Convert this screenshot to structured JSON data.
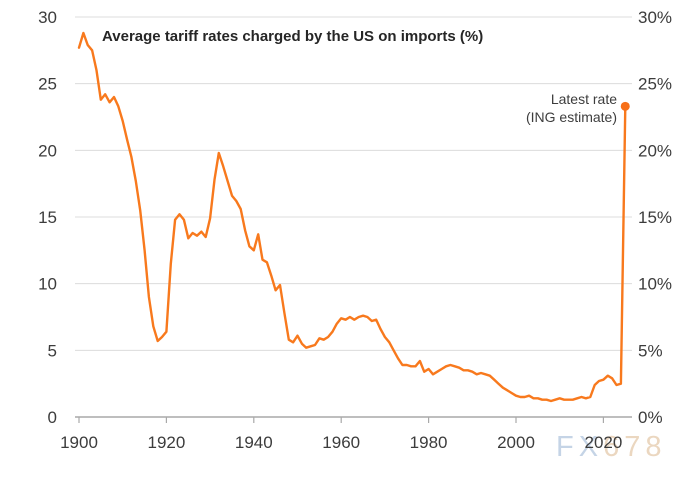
{
  "chart_data": {
    "type": "line",
    "title": "Average tariff rates charged by the US on imports (%)",
    "xlabel": "",
    "ylabel": "",
    "x_range": {
      "start": 1900,
      "end": 2025,
      "step": 1
    },
    "values": [
      27.7,
      28.8,
      27.9,
      27.5,
      26.0,
      23.8,
      24.2,
      23.6,
      24.0,
      23.3,
      22.2,
      20.8,
      19.5,
      17.7,
      15.5,
      12.5,
      9.0,
      6.8,
      5.7,
      6.0,
      6.4,
      11.5,
      14.8,
      15.2,
      14.8,
      13.4,
      13.8,
      13.6,
      13.9,
      13.5,
      14.9,
      17.8,
      19.8,
      18.8,
      17.7,
      16.6,
      16.2,
      15.6,
      14.0,
      12.8,
      12.5,
      13.7,
      11.8,
      11.6,
      10.6,
      9.5,
      9.9,
      7.8,
      5.8,
      5.6,
      6.1,
      5.5,
      5.2,
      5.3,
      5.4,
      5.9,
      5.8,
      6.0,
      6.4,
      7.0,
      7.4,
      7.3,
      7.5,
      7.3,
      7.5,
      7.6,
      7.5,
      7.2,
      7.3,
      6.6,
      6.0,
      5.6,
      5.0,
      4.4,
      3.9,
      3.9,
      3.8,
      3.8,
      4.2,
      3.4,
      3.6,
      3.2,
      3.4,
      3.6,
      3.8,
      3.9,
      3.8,
      3.7,
      3.5,
      3.5,
      3.4,
      3.2,
      3.3,
      3.2,
      3.1,
      2.8,
      2.5,
      2.2,
      2.0,
      1.8,
      1.6,
      1.5,
      1.5,
      1.6,
      1.4,
      1.4,
      1.3,
      1.3,
      1.2,
      1.3,
      1.4,
      1.3,
      1.3,
      1.3,
      1.4,
      1.5,
      1.4,
      1.5,
      2.4,
      2.7,
      2.8,
      3.1,
      2.9,
      2.4,
      2.5,
      23.3
    ],
    "x_ticks": [
      1900,
      1920,
      1940,
      1960,
      1980,
      2000,
      2020
    ],
    "y_ticks": [
      0,
      5,
      10,
      15,
      20,
      25,
      30
    ],
    "ylim": [
      0,
      30
    ],
    "y_axis_left_format": "plain",
    "y_axis_right_format": "percent",
    "grid": "horizontal",
    "legend_position": "none",
    "annotation": {
      "line1": "Latest rate",
      "line2": "(ING estimate)",
      "year": 2025,
      "value": 23.3
    },
    "line_color": "#f8791d",
    "dot_color": "#f76f18",
    "grid_color": "#dcdcdc",
    "axis_color": "#a9a9a9",
    "text_color": "#3c3c3c"
  },
  "watermark": {
    "part1": "FX",
    "part2": "678"
  }
}
